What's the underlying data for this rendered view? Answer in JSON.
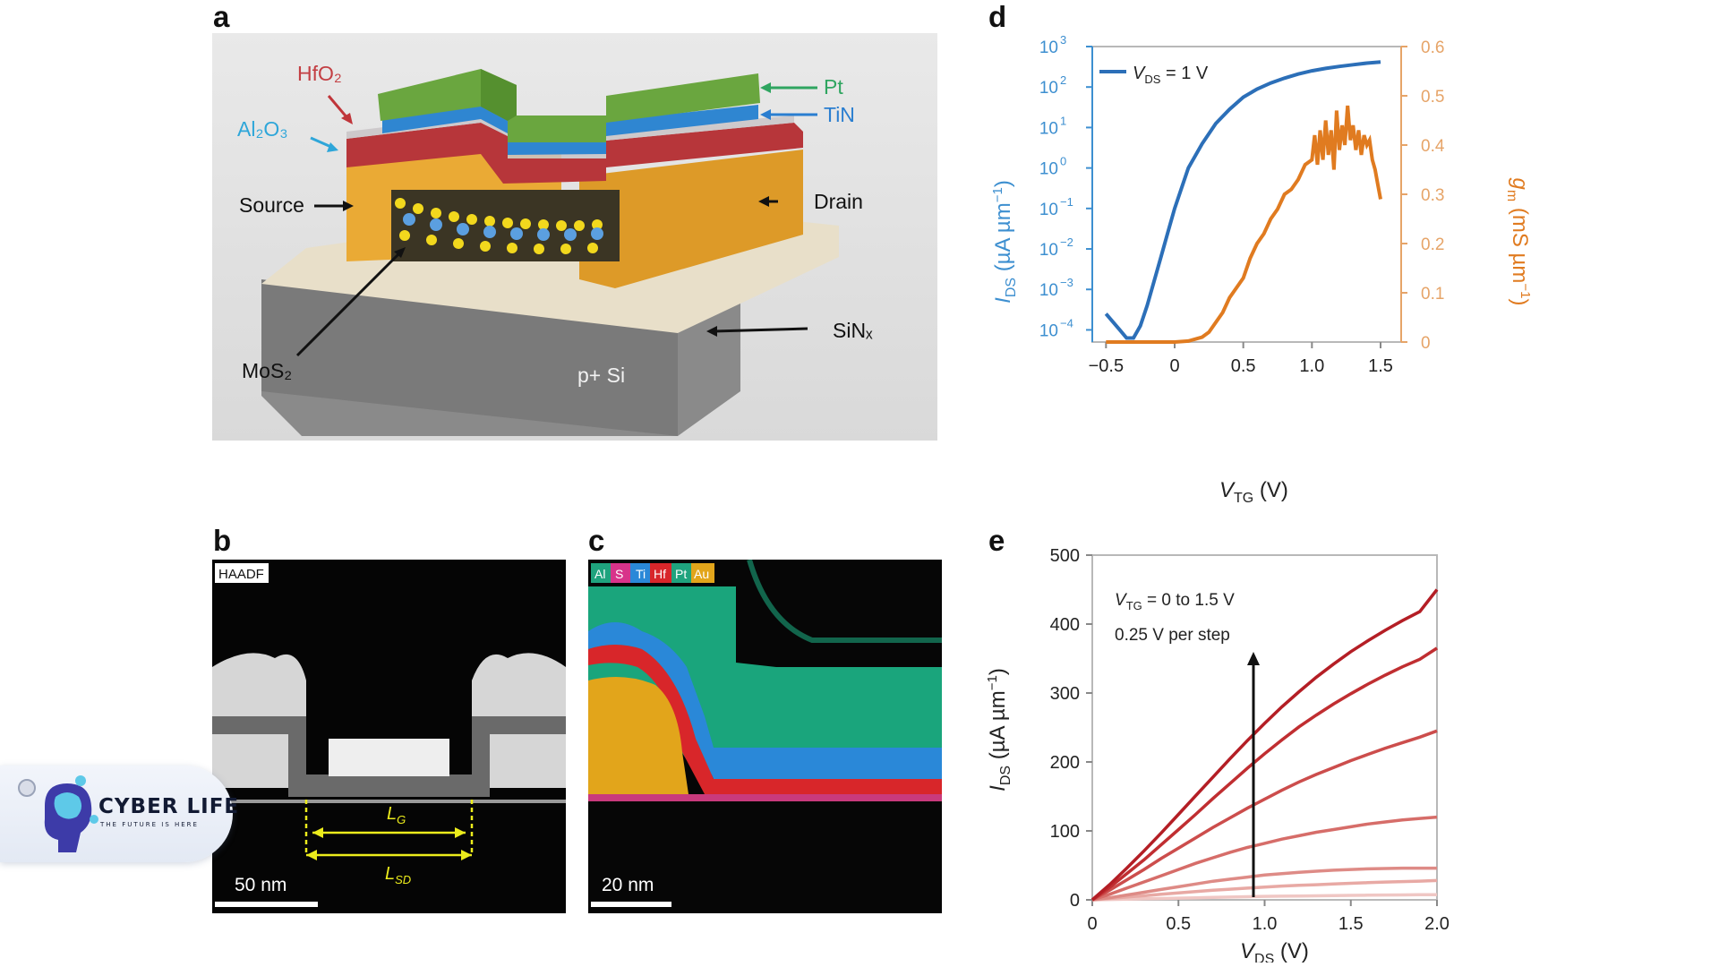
{
  "panels": {
    "a": {
      "letter": "a",
      "labels": {
        "hfo2": "HfO₂",
        "al2o3": "Al₂O₃",
        "pt": "Pt",
        "tin": "TiN",
        "source": "Source",
        "drain": "Drain",
        "mos2": "MoS₂",
        "sinx": "SiNₓ",
        "psi": "p+ Si"
      },
      "colors": {
        "pt": "#6aa63f",
        "tin": "#2f86d1",
        "hfo2": "#b3363a",
        "al2o3": "#3fa8e0",
        "gold": "#e8a830",
        "sinx": "#e5dcc6",
        "si": "#7b7b7b",
        "bg": "#e4e4e4"
      }
    },
    "b": {
      "letter": "b",
      "mode": "HAADF",
      "lg": "L",
      "lg_sub": "G",
      "lsd": "L",
      "lsd_sub": "SD",
      "scale": "50 nm"
    },
    "c": {
      "letter": "c",
      "legend": [
        "Al",
        "S",
        "Ti",
        "Hf",
        "Pt",
        "Au"
      ],
      "legend_colors": [
        "#1fa37e",
        "#d8338a",
        "#2a88d8",
        "#d8262a",
        "#1fa37e",
        "#e2a51b"
      ],
      "scale": "20 nm"
    },
    "d": {
      "letter": "d",
      "legend": "V",
      "legend_sub": "DS",
      "legend_tail": " = 1 V"
    },
    "e": {
      "letter": "e",
      "annotation_line1": "V",
      "annotation_line1_sub": "TG",
      "annotation_line1_tail": " = 0 to 1.5 V",
      "annotation_line2": "0.25 V per step"
    }
  },
  "watermark": {
    "name": "CYBER LIFE",
    "tagline": "THE FUTURE IS HERE"
  },
  "chart_data": [
    {
      "type": "line",
      "panel": "d",
      "xlabel": "V_TG (V)",
      "ylabel_left": "I_DS (µA µm⁻¹)",
      "ylabel_right": "g_m (mS µm⁻¹)",
      "xlim": [
        -0.6,
        1.65
      ],
      "ylim_left_log10": [
        -4.3,
        3
      ],
      "ylim_right": [
        0,
        0.6
      ],
      "left_scale": "log",
      "x_ticks": [
        -0.5,
        0,
        0.5,
        1.0,
        1.5
      ],
      "x_tick_labels": [
        "−0.5",
        "0",
        "0.5",
        "1.0",
        "1.5"
      ],
      "left_ticks_exp": [
        -4,
        -3,
        -2,
        -1,
        0,
        1,
        2,
        3
      ],
      "right_ticks": [
        0,
        0.1,
        0.2,
        0.3,
        0.4,
        0.5,
        0.6
      ],
      "right_tick_labels": [
        "0",
        "0.1",
        "0.2",
        "0.3",
        "0.4",
        "0.5",
        "0.6"
      ],
      "series": [
        {
          "name": "V_DS = 1 V",
          "axis": "left",
          "color": "#2c6fb8",
          "x": [
            -0.5,
            -0.45,
            -0.4,
            -0.35,
            -0.3,
            -0.25,
            -0.2,
            -0.15,
            -0.1,
            -0.05,
            0.0,
            0.1,
            0.2,
            0.3,
            0.4,
            0.5,
            0.6,
            0.7,
            0.8,
            0.9,
            1.0,
            1.1,
            1.2,
            1.3,
            1.4,
            1.5
          ],
          "log10_y": [
            -3.6,
            -3.8,
            -4.0,
            -4.2,
            -4.2,
            -3.9,
            -3.4,
            -2.8,
            -2.2,
            -1.6,
            -1.0,
            0.0,
            0.6,
            1.1,
            1.45,
            1.75,
            1.95,
            2.1,
            2.22,
            2.32,
            2.4,
            2.46,
            2.51,
            2.55,
            2.59,
            2.62
          ]
        },
        {
          "axis": "right",
          "color": "#e07b20",
          "x": [
            -0.5,
            0.0,
            0.1,
            0.2,
            0.25,
            0.3,
            0.35,
            0.4,
            0.45,
            0.5,
            0.55,
            0.6,
            0.65,
            0.7,
            0.75,
            0.8,
            0.85,
            0.9,
            0.95,
            1.0,
            1.02,
            1.04,
            1.06,
            1.08,
            1.1,
            1.12,
            1.14,
            1.16,
            1.18,
            1.2,
            1.22,
            1.24,
            1.26,
            1.28,
            1.3,
            1.32,
            1.34,
            1.36,
            1.38,
            1.4,
            1.42,
            1.44,
            1.46,
            1.48,
            1.5
          ],
          "y": [
            0,
            0,
            0.002,
            0.01,
            0.02,
            0.04,
            0.06,
            0.09,
            0.11,
            0.13,
            0.17,
            0.2,
            0.22,
            0.25,
            0.27,
            0.3,
            0.31,
            0.33,
            0.36,
            0.37,
            0.42,
            0.36,
            0.43,
            0.37,
            0.45,
            0.38,
            0.43,
            0.35,
            0.47,
            0.39,
            0.44,
            0.4,
            0.48,
            0.41,
            0.44,
            0.39,
            0.43,
            0.38,
            0.42,
            0.4,
            0.41,
            0.37,
            0.35,
            0.32,
            0.29
          ]
        }
      ]
    },
    {
      "type": "line",
      "panel": "e",
      "xlabel": "V_DS (V)",
      "ylabel": "I_DS (µA µm⁻¹)",
      "xlim": [
        0,
        2.0
      ],
      "ylim": [
        0,
        500
      ],
      "x_ticks": [
        0,
        0.5,
        1.0,
        1.5,
        2.0
      ],
      "x_tick_labels": [
        "0",
        "0.5",
        "1.0",
        "1.5",
        "2.0"
      ],
      "y_ticks": [
        0,
        100,
        200,
        300,
        400,
        500
      ],
      "colors": [
        "#f0c7c4",
        "#e8a9a4",
        "#de8b86",
        "#d66d69",
        "#cc4d4c",
        "#c02e31",
        "#b41e25"
      ],
      "vtg": [
        0,
        0.25,
        0.5,
        0.75,
        1.0,
        1.25,
        1.5
      ],
      "x": [
        0,
        0.1,
        0.2,
        0.3,
        0.4,
        0.5,
        0.6,
        0.7,
        0.8,
        0.9,
        1.0,
        1.1,
        1.2,
        1.3,
        1.4,
        1.5,
        1.6,
        1.7,
        1.8,
        1.9,
        2.0
      ],
      "series": [
        {
          "values": [
            0,
            0.5,
            1,
            1.5,
            2,
            2.5,
            3,
            3.5,
            4,
            4.5,
            5,
            5.3,
            5.6,
            5.9,
            6.2,
            6.5,
            6.8,
            7,
            7.2,
            7.4,
            7.5
          ]
        },
        {
          "values": [
            0,
            2,
            4,
            6,
            8,
            10,
            12,
            14,
            15.5,
            17,
            18.5,
            20,
            21,
            22,
            23,
            24,
            25,
            25.8,
            26.5,
            27.2,
            28
          ]
        },
        {
          "values": [
            0,
            3,
            7,
            11,
            15,
            19,
            23,
            27,
            30,
            33,
            36,
            38,
            40,
            41.5,
            43,
            44,
            45,
            45.5,
            46,
            46,
            46
          ]
        },
        {
          "values": [
            0,
            8,
            17,
            26,
            35,
            44,
            53,
            61,
            69,
            76,
            82,
            88,
            93,
            98,
            102,
            106,
            110,
            113,
            116,
            118,
            120
          ]
        },
        {
          "values": [
            0,
            14,
            29,
            44,
            60,
            75,
            90,
            105,
            119,
            133,
            146,
            159,
            171,
            182,
            192,
            202,
            211,
            220,
            228,
            236,
            245
          ]
        },
        {
          "values": [
            0,
            18,
            38,
            58,
            80,
            102,
            124,
            147,
            169,
            191,
            212,
            232,
            251,
            268,
            284,
            299,
            313,
            326,
            338,
            349,
            365
          ]
        },
        {
          "values": [
            0,
            22,
            46,
            71,
            97,
            124,
            151,
            178,
            205,
            231,
            256,
            280,
            302,
            323,
            342,
            360,
            376,
            391,
            405,
            418,
            450
          ]
        }
      ]
    }
  ]
}
